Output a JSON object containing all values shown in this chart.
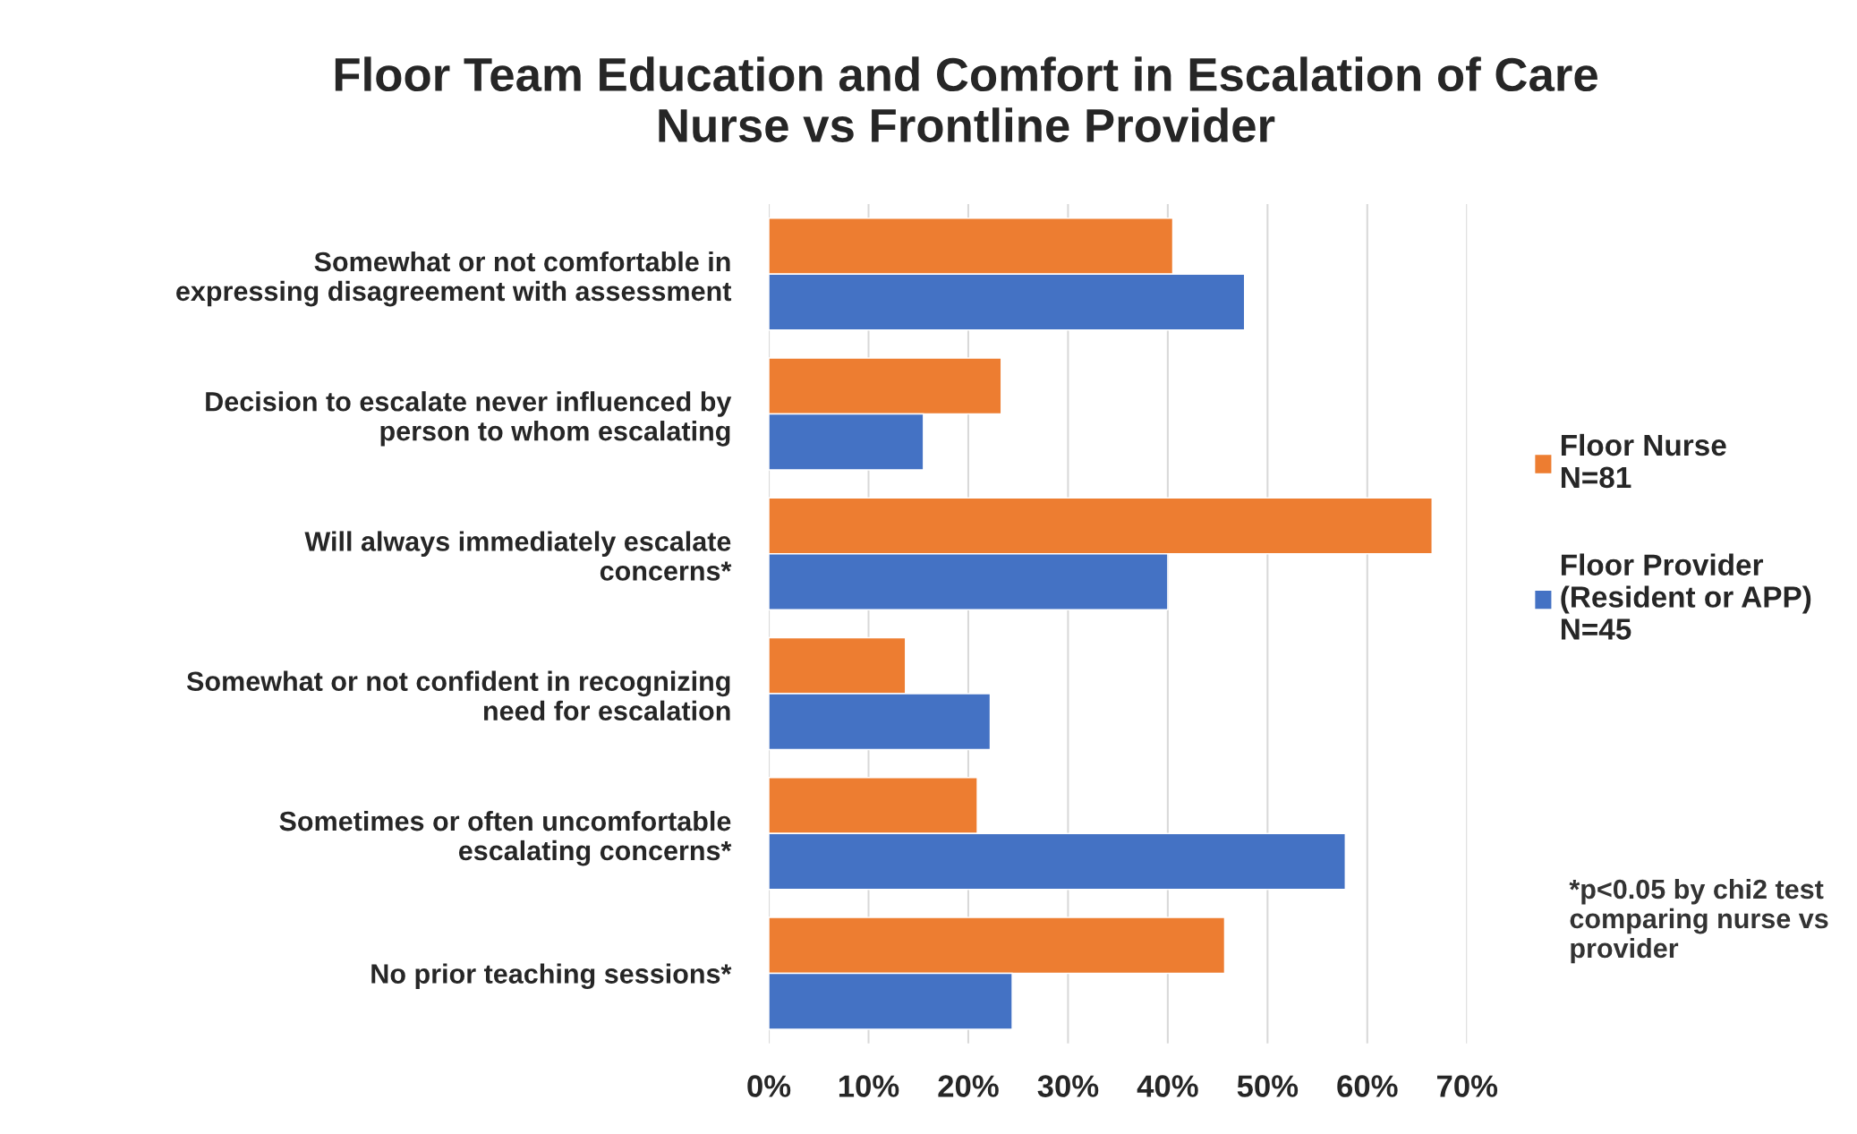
{
  "chart_data": {
    "type": "bar",
    "orientation": "horizontal",
    "title": "Floor Team Education and Comfort in Escalation of Care\nNurse vs Frontline Provider",
    "categories": [
      "Somewhat or not comfortable in\nexpressing disagreement with assessment",
      "Decision to escalate never influenced by\nperson to whom escalating",
      "Will always immediately escalate\nconcerns*",
      "Somewhat or not confident in recognizing\nneed for escalation",
      "Sometimes or often uncomfortable\nescalating concerns*",
      "No prior teaching sessions*"
    ],
    "series": [
      {
        "name": "Floor Nurse\nN=81",
        "color": "#ed7d31",
        "values": [
          40.5,
          23.3,
          66.5,
          13.7,
          20.9,
          45.7
        ]
      },
      {
        "name": "Floor Provider\n(Resident or APP)\nN=45",
        "color": "#4472c4",
        "values": [
          47.7,
          15.5,
          40,
          22.2,
          57.8,
          24.4
        ]
      }
    ],
    "xlim": [
      0,
      70
    ],
    "xticks": [
      {
        "value": 0,
        "label": "0%"
      },
      {
        "value": 10,
        "label": "10%"
      },
      {
        "value": 20,
        "label": "20%"
      },
      {
        "value": 30,
        "label": "30%"
      },
      {
        "value": 40,
        "label": "40%"
      },
      {
        "value": 50,
        "label": "50%"
      },
      {
        "value": 60,
        "label": "60%"
      },
      {
        "value": 70,
        "label": "70%"
      }
    ],
    "grid": "x",
    "legend": "right",
    "annotations": [
      "*p<0.05 by chi2 test\ncomparing nurse vs\nprovider"
    ]
  }
}
